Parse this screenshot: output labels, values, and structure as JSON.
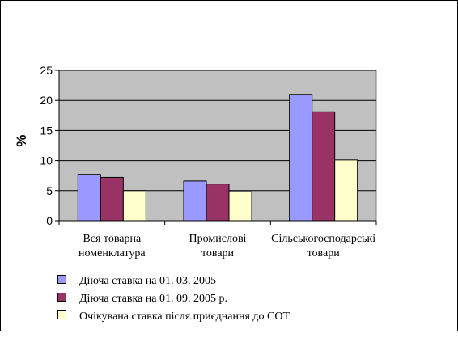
{
  "chart_data": {
    "type": "bar",
    "ylabel": "%",
    "xlabel": "",
    "ylim": [
      0,
      25
    ],
    "yticks": [
      0,
      5,
      10,
      15,
      20,
      25
    ],
    "grid": true,
    "legend_position": "bottom",
    "plot_background": "#c0c0c0",
    "categories": [
      [
        "Вся товарна",
        "номенклатура"
      ],
      [
        "Промислові",
        "товари"
      ],
      [
        "Сільськогосподарські",
        "товари"
      ]
    ],
    "series": [
      {
        "name": "Діюча ставка на 01. 03. 2005",
        "color": "#9999ff",
        "values": [
          7.7,
          6.6,
          21.0
        ]
      },
      {
        "name": "Діюча ставка на 01. 09. 2005 р.",
        "color": "#993366",
        "values": [
          7.2,
          6.1,
          18.1
        ]
      },
      {
        "name": "Очікувана ставка після приєднання до СОТ",
        "color": "#ffffcc",
        "values": [
          5.0,
          4.8,
          10.1
        ]
      }
    ]
  }
}
